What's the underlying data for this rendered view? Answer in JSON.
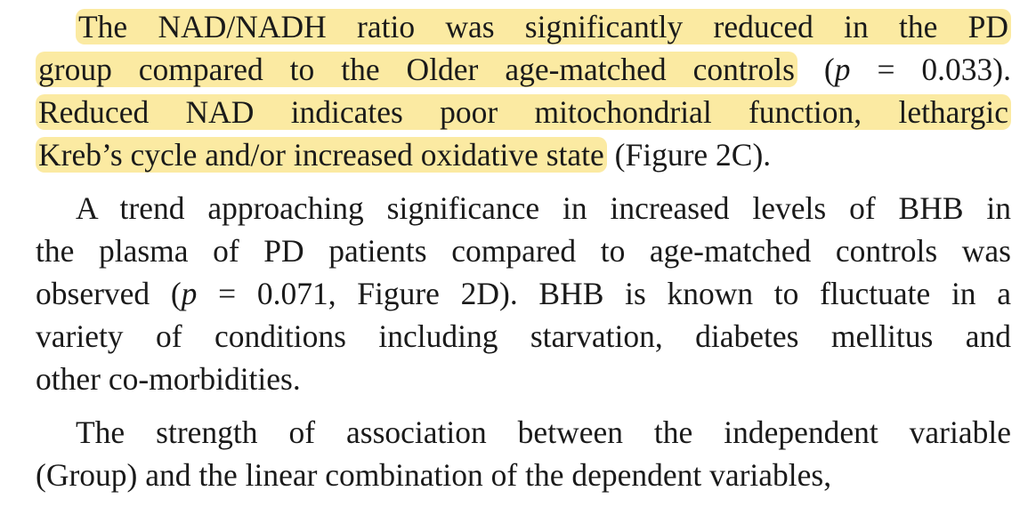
{
  "paragraphs": [
    {
      "lines": [
        {
          "segments": [
            {
              "text": "The NAD/NADH ratio was significantly reduced in the PD",
              "highlight": true
            }
          ]
        },
        {
          "segments": [
            {
              "text": "group compared to the Older age-matched controls",
              "highlight": true
            },
            {
              "text": " ("
            },
            {
              "text": "p",
              "italic": true
            },
            {
              "text": " = 0.033)."
            }
          ]
        },
        {
          "segments": [
            {
              "text": "Reduced NAD indicates poor mitochondrial function, lethargic",
              "highlight": true
            }
          ]
        },
        {
          "segments": [
            {
              "text": "Kreb’s cycle and/or increased oxidative state",
              "highlight": true
            },
            {
              "text": " (Figure 2C)."
            }
          ]
        }
      ]
    },
    {
      "lines": [
        {
          "segments": [
            {
              "text": "A trend approaching significance in increased levels of BHB in"
            }
          ]
        },
        {
          "segments": [
            {
              "text": "the plasma of PD patients compared to age-matched controls was"
            }
          ]
        },
        {
          "segments": [
            {
              "text": "observed ("
            },
            {
              "text": "p",
              "italic": true
            },
            {
              "text": " = 0.071, Figure 2D). BHB is known to fluctuate in a"
            }
          ]
        },
        {
          "segments": [
            {
              "text": "variety of conditions including starvation, diabetes mellitus and"
            }
          ]
        },
        {
          "segments": [
            {
              "text": "other co-morbidities."
            }
          ]
        }
      ]
    },
    {
      "lines": [
        {
          "segments": [
            {
              "text": "The strength of association between the independent variable"
            }
          ]
        },
        {
          "segments": [
            {
              "text": "(Group) and the linear combination of the dependent variables,"
            }
          ]
        }
      ]
    }
  ]
}
